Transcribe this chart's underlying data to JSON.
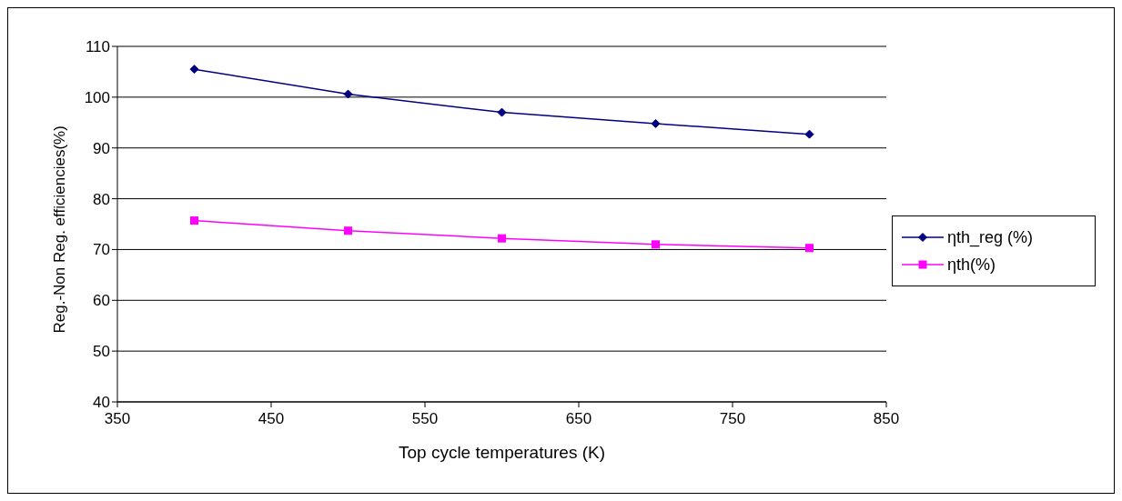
{
  "chart_data": {
    "type": "line",
    "xlabel": "Top cycle temperatures (K)",
    "ylabel": "Reg.-Non Reg. efficiencies(%)",
    "x": [
      400,
      500,
      600,
      700,
      800
    ],
    "series": [
      {
        "name": "ηth_reg (%)",
        "color": "#000080",
        "marker": "diamond",
        "values": [
          105.5,
          100.6,
          97.0,
          94.8,
          92.7
        ]
      },
      {
        "name": "ηth(%)",
        "color": "#ff00ff",
        "marker": "square",
        "values": [
          75.7,
          73.7,
          72.2,
          71.0,
          70.3
        ]
      }
    ],
    "xlim": [
      350,
      850
    ],
    "xticks": [
      350,
      450,
      550,
      650,
      750,
      850
    ],
    "ylim": [
      40,
      110
    ],
    "yticks": [
      40,
      50,
      60,
      70,
      80,
      90,
      100,
      110
    ],
    "grid": "y",
    "legend": "right",
    "line_style": "solid"
  }
}
